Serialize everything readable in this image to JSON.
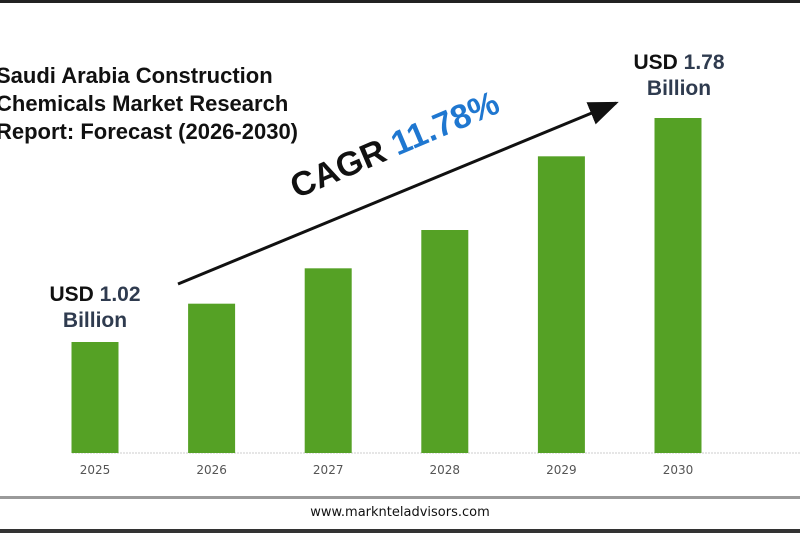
{
  "chart_data": {
    "type": "bar",
    "title": "Saudi Arabia Construction Chemicals Market Research Report: Forecast (2026-2030)",
    "categories": [
      "2025",
      "2026",
      "2027",
      "2028",
      "2029",
      "2030"
    ],
    "values": [
      1.02,
      1.15,
      1.27,
      1.4,
      1.65,
      1.78
    ],
    "unit": "USD Billion",
    "bar_color": "#55a125",
    "grid": false,
    "annotations": {
      "start": {
        "prefix": "USD",
        "value": "1.02",
        "suffix": "Billion"
      },
      "end": {
        "prefix": "USD",
        "value": "1.78",
        "suffix": "Billion"
      },
      "cagr_label": "CAGR",
      "cagr_value": "11.78%"
    }
  },
  "footer": {
    "url": "www.marknteladvisors.com"
  }
}
